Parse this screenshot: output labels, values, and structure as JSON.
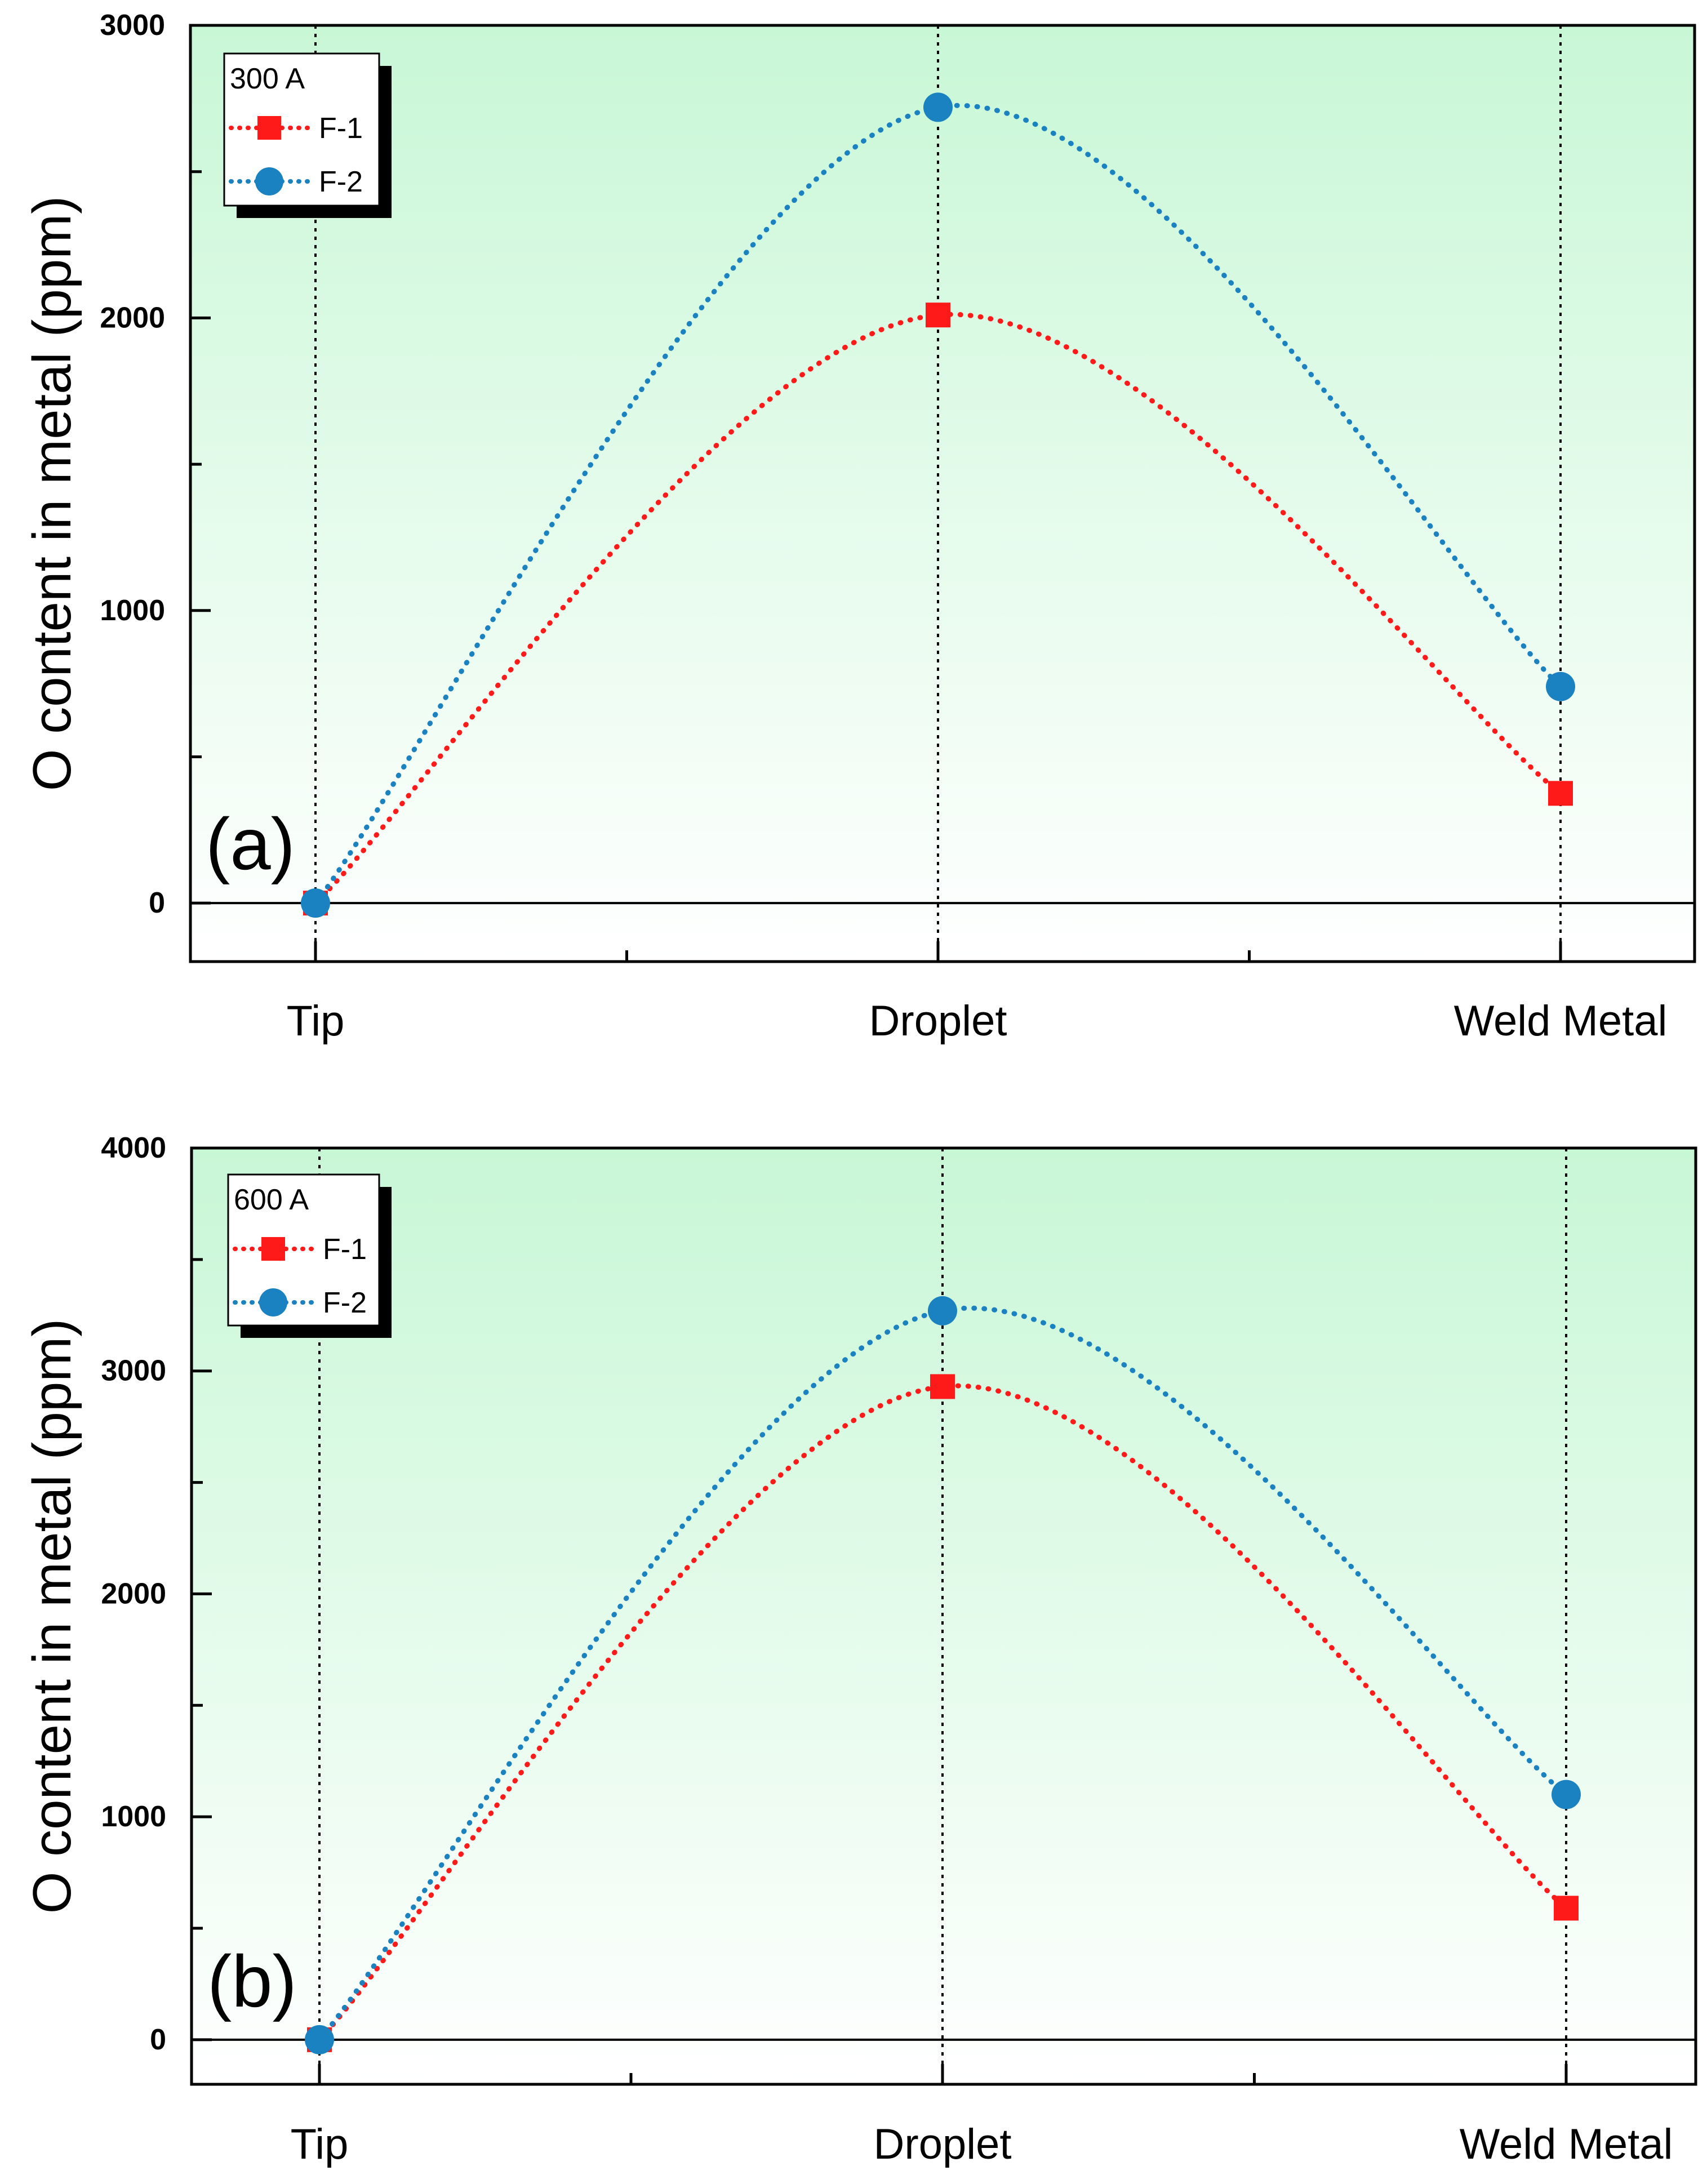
{
  "colors": {
    "f1": "#ff1a1a",
    "f2": "#1a82c0",
    "bg_top": "#c8f7d6",
    "bg_bottom": "#ffffff"
  },
  "chart_data": [
    {
      "type": "line",
      "panel_label": "(a)",
      "legend_title": "300 A",
      "legend_placement": "top-left",
      "ylabel": "O content in metal (ppm)",
      "xlabel": "",
      "categories": [
        "Tip",
        "Droplet",
        "Weld Metal"
      ],
      "ylim": [
        -200,
        3000
      ],
      "yticks": [
        0,
        1000,
        2000,
        3000
      ],
      "series": [
        {
          "name": "F-1",
          "marker": "square",
          "values": [
            0,
            2010,
            375
          ]
        },
        {
          "name": "F-2",
          "marker": "circle",
          "values": [
            0,
            2720,
            740
          ]
        }
      ]
    },
    {
      "type": "line",
      "panel_label": "(b)",
      "legend_title": "600 A",
      "legend_placement": "top-left",
      "ylabel": "O content in metal (ppm)",
      "xlabel": "",
      "categories": [
        "Tip",
        "Droplet",
        "Weld Metal"
      ],
      "ylim": [
        -200,
        4000
      ],
      "yticks": [
        0,
        1000,
        2000,
        3000,
        4000
      ],
      "series": [
        {
          "name": "F-1",
          "marker": "square",
          "values": [
            0,
            2930,
            590
          ]
        },
        {
          "name": "F-2",
          "marker": "circle",
          "values": [
            0,
            3270,
            1100
          ]
        }
      ]
    }
  ]
}
